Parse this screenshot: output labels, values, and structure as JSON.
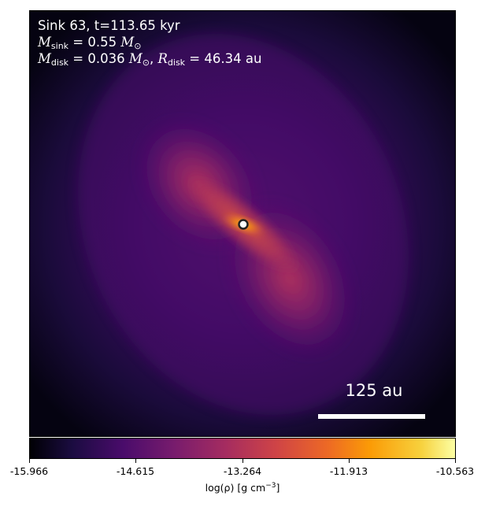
{
  "annotation": {
    "sink_line": "Sink 63, t=113.65 kyr",
    "mass_symbol": "M",
    "sink_sub": "sink",
    "sink_value": " = 0.55 ",
    "sun_sub": "⊙",
    "disk_sub": "disk",
    "disk_mass_value": " = 0.036 ",
    "radius_symbol": "R",
    "disk_radius_value": " = 46.34 au",
    "comma": ", "
  },
  "scalebar": {
    "label": "125 au"
  },
  "colorbar": {
    "ticks": [
      "-15.966",
      "-14.615",
      "-13.264",
      "-11.913",
      "-10.563"
    ],
    "label_prefix": "log(ρ) [g cm",
    "label_exponent": "−3",
    "label_suffix": "]",
    "colormap": "inferno"
  },
  "colors": {
    "background_dark": "#000004",
    "disk_core": "#fb9b06",
    "sink_marker_fill": "#ffffff",
    "sink_marker_edge": "#222222"
  }
}
